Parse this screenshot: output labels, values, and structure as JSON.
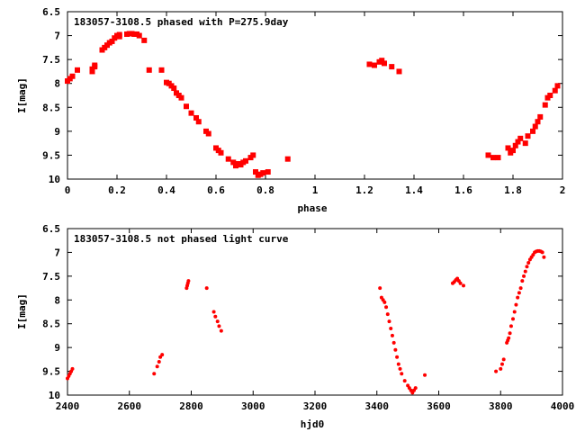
{
  "marker_color": "#ff0000",
  "chart_data": [
    {
      "type": "scatter",
      "title": "183057-3108.5 phased with P=275.9day",
      "xlabel": "phase",
      "ylabel": "I[mag]",
      "xlim": [
        0,
        2
      ],
      "ylim": [
        6.5,
        10
      ],
      "y_inverted": true,
      "grid": false,
      "legend": "none",
      "marker": "filled-square",
      "xticks": [
        "0",
        "0.2",
        "0.4",
        "0.6",
        "0.8",
        "1",
        "1.2",
        "1.4",
        "1.6",
        "1.8",
        "2"
      ],
      "yticks": [
        "6.5",
        "7",
        "7.5",
        "8",
        "8.5",
        "9",
        "9.5",
        "10"
      ],
      "series": [
        {
          "x": [
            0.0,
            0.01,
            0.02,
            0.04,
            0.1,
            0.1,
            0.11,
            0.11,
            0.14,
            0.15,
            0.16,
            0.17,
            0.18,
            0.19,
            0.2,
            0.21,
            0.21,
            0.24,
            0.25,
            0.26,
            0.27,
            0.28,
            0.29,
            0.31,
            0.33,
            0.38,
            0.4,
            0.41,
            0.42,
            0.43,
            0.44,
            0.45,
            0.46,
            0.48,
            0.5,
            0.52,
            0.53,
            0.56,
            0.57,
            0.6,
            0.61,
            0.62,
            0.65,
            0.67,
            0.68,
            0.69,
            0.7,
            0.71,
            0.72,
            0.74,
            0.75,
            0.76,
            0.77,
            0.78,
            0.79,
            0.81,
            0.89,
            1.22,
            1.24,
            1.26,
            1.27,
            1.28,
            1.31,
            1.34,
            1.7,
            1.72,
            1.74,
            1.78,
            1.79,
            1.8,
            1.81,
            1.82,
            1.83,
            1.85,
            1.86,
            1.88,
            1.89,
            1.9,
            1.91,
            1.93,
            1.94,
            1.95,
            1.97,
            1.98
          ],
          "y": [
            7.95,
            7.9,
            7.85,
            7.72,
            7.75,
            7.7,
            7.65,
            7.62,
            7.3,
            7.25,
            7.2,
            7.15,
            7.12,
            7.05,
            7.0,
            6.98,
            7.02,
            6.97,
            6.96,
            6.96,
            6.97,
            6.97,
            7.0,
            7.1,
            7.72,
            7.72,
            7.98,
            8.0,
            8.05,
            8.1,
            8.2,
            8.25,
            8.3,
            8.48,
            8.62,
            8.72,
            8.8,
            9.0,
            9.05,
            9.35,
            9.4,
            9.45,
            9.58,
            9.65,
            9.72,
            9.68,
            9.7,
            9.65,
            9.62,
            9.55,
            9.5,
            9.85,
            9.92,
            9.9,
            9.87,
            9.85,
            9.58,
            7.6,
            7.62,
            7.55,
            7.52,
            7.58,
            7.65,
            7.75,
            9.5,
            9.55,
            9.55,
            9.35,
            9.45,
            9.4,
            9.3,
            9.22,
            9.15,
            9.25,
            9.1,
            9.0,
            8.9,
            8.8,
            8.7,
            8.45,
            8.3,
            8.25,
            8.15,
            8.05
          ]
        }
      ]
    },
    {
      "type": "scatter",
      "title": "183057-3108.5 not phased light curve",
      "xlabel": "hjd0",
      "ylabel": "I[mag]",
      "xlim": [
        2400,
        4000
      ],
      "ylim": [
        6.5,
        10
      ],
      "y_inverted": true,
      "grid": false,
      "legend": "none",
      "marker": "small-dot",
      "xticks": [
        "2400",
        "2600",
        "2800",
        "3000",
        "3200",
        "3400",
        "3600",
        "3800",
        "4000"
      ],
      "yticks": [
        "6.5",
        "7",
        "7.5",
        "8",
        "8.5",
        "9",
        "9.5",
        "10"
      ],
      "series": [
        {
          "x": [
            2400,
            2404,
            2408,
            2412,
            2416,
            2680,
            2690,
            2696,
            2700,
            2706,
            2785,
            2787,
            2789,
            2791,
            2850,
            2873,
            2878,
            2885,
            2890,
            2897,
            3410,
            3415,
            3420,
            3425,
            3430,
            3435,
            3440,
            3445,
            3450,
            3455,
            3460,
            3465,
            3470,
            3475,
            3480,
            3490,
            3500,
            3505,
            3510,
            3515,
            3520,
            3525,
            3555,
            3645,
            3650,
            3655,
            3660,
            3665,
            3670,
            3680,
            3785,
            3800,
            3805,
            3810,
            3820,
            3823,
            3826,
            3830,
            3834,
            3840,
            3845,
            3850,
            3855,
            3860,
            3865,
            3870,
            3875,
            3880,
            3885,
            3890,
            3895,
            3900,
            3905,
            3910,
            3915,
            3920,
            3925,
            3930,
            3935,
            3940
          ],
          "y": [
            9.65,
            9.6,
            9.55,
            9.5,
            9.45,
            9.55,
            9.4,
            9.3,
            9.2,
            9.15,
            7.75,
            7.7,
            7.65,
            7.6,
            7.75,
            8.25,
            8.35,
            8.45,
            8.55,
            8.65,
            7.75,
            7.95,
            8.0,
            8.05,
            8.15,
            8.3,
            8.45,
            8.6,
            8.75,
            8.9,
            9.05,
            9.2,
            9.35,
            9.45,
            9.55,
            9.7,
            9.8,
            9.85,
            9.9,
            9.95,
            9.9,
            9.85,
            9.58,
            7.65,
            7.62,
            7.58,
            7.55,
            7.6,
            7.65,
            7.7,
            9.5,
            9.45,
            9.35,
            9.25,
            8.9,
            8.85,
            8.8,
            8.7,
            8.55,
            8.4,
            8.25,
            8.1,
            7.95,
            7.85,
            7.75,
            7.6,
            7.5,
            7.4,
            7.3,
            7.22,
            7.15,
            7.1,
            7.05,
            7.0,
            6.98,
            6.97,
            6.97,
            6.98,
            7.0,
            7.1
          ]
        }
      ]
    }
  ]
}
